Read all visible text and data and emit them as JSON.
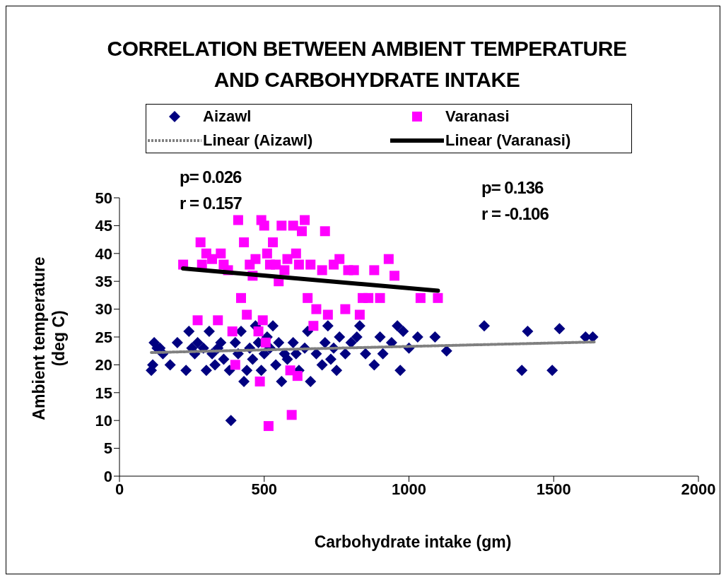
{
  "chart_data": {
    "type": "scatter",
    "title": "CORRELATION BETWEEN AMBIENT TEMPERATURE AND CARBOHYDRATE INTAKE",
    "xlabel": "Carbohydrate intake (gm)",
    "ylabel": "Ambient temperature (deg C)",
    "xlim": [
      0,
      2000
    ],
    "xticks": [
      0,
      500,
      1000,
      1500,
      2000
    ],
    "ylim": [
      0,
      50
    ],
    "yticks": [
      0,
      5,
      10,
      15,
      20,
      25,
      30,
      35,
      40,
      45,
      50
    ],
    "legend": "top",
    "annotations": [
      "p= 0.026",
      "r = 0.157",
      "p= 0.136",
      "r = -0.106"
    ],
    "series": [
      {
        "name": "Aizawl",
        "marker": "diamond",
        "color": "#000080",
        "x": [
          110,
          115,
          120,
          130,
          140,
          150,
          175,
          200,
          230,
          240,
          250,
          260,
          270,
          290,
          300,
          310,
          320,
          330,
          340,
          350,
          360,
          380,
          385,
          400,
          410,
          420,
          430,
          440,
          450,
          460,
          470,
          480,
          490,
          500,
          510,
          520,
          530,
          540,
          550,
          560,
          570,
          580,
          600,
          610,
          620,
          640,
          650,
          660,
          680,
          700,
          710,
          720,
          730,
          740,
          750,
          760,
          780,
          800,
          820,
          830,
          850,
          880,
          900,
          910,
          940,
          960,
          970,
          980,
          1000,
          1030,
          1090,
          1130,
          1260,
          1390,
          1410,
          1495,
          1520,
          1610,
          1635
        ],
        "values": [
          19,
          20,
          24,
          23,
          23,
          22,
          20,
          24,
          19,
          26,
          23,
          22,
          24,
          23,
          19,
          26,
          22,
          20,
          23,
          24,
          21,
          19,
          10,
          24,
          22,
          26,
          17,
          19,
          23,
          21,
          27,
          24,
          19,
          22,
          25,
          23,
          27,
          20,
          24,
          17,
          22,
          21,
          24,
          22,
          19,
          23,
          26,
          17,
          22,
          20,
          24,
          27,
          21,
          23,
          19,
          25,
          22,
          24,
          25,
          27,
          22,
          20,
          25,
          22,
          24,
          27,
          19,
          26,
          23,
          25,
          25,
          22.5,
          27,
          19,
          26,
          19,
          26.5,
          25,
          25
        ]
      },
      {
        "name": "Varanasi",
        "marker": "square",
        "color": "#ff00ff",
        "x": [
          220,
          270,
          280,
          285,
          300,
          320,
          340,
          350,
          360,
          375,
          390,
          400,
          410,
          420,
          430,
          440,
          450,
          460,
          470,
          480,
          485,
          490,
          495,
          500,
          505,
          510,
          515,
          520,
          530,
          540,
          550,
          560,
          570,
          580,
          590,
          595,
          600,
          610,
          615,
          620,
          630,
          640,
          650,
          660,
          670,
          680,
          700,
          710,
          720,
          740,
          760,
          780,
          790,
          810,
          830,
          840,
          860,
          880,
          900,
          930,
          950,
          1040,
          1100
        ],
        "values": [
          38,
          28,
          42,
          38,
          40,
          39,
          28,
          40,
          38,
          37,
          26,
          20,
          46,
          32,
          42,
          29,
          38,
          36,
          39,
          26,
          17,
          46,
          28,
          45,
          24,
          40,
          9,
          38,
          42,
          38,
          35,
          45,
          37,
          39,
          19,
          11,
          45,
          40,
          18,
          38,
          44,
          46,
          32,
          38,
          27,
          30,
          37,
          44,
          29,
          38,
          39,
          30,
          37,
          37,
          29,
          32,
          32,
          37,
          32,
          39,
          36,
          32,
          32
        ]
      },
      {
        "name": "Linear (Aizawl)",
        "type": "line",
        "marker": "none",
        "line_style": "dotted",
        "color": "#808080",
        "x": [
          110,
          1640
        ],
        "values": [
          22.2,
          24.1
        ]
      },
      {
        "name": "Linear (Varanasi)",
        "type": "line",
        "marker": "none",
        "line_style": "solid",
        "color": "#000000",
        "x": [
          220,
          1100
        ],
        "values": [
          37.3,
          33.3
        ]
      }
    ]
  }
}
